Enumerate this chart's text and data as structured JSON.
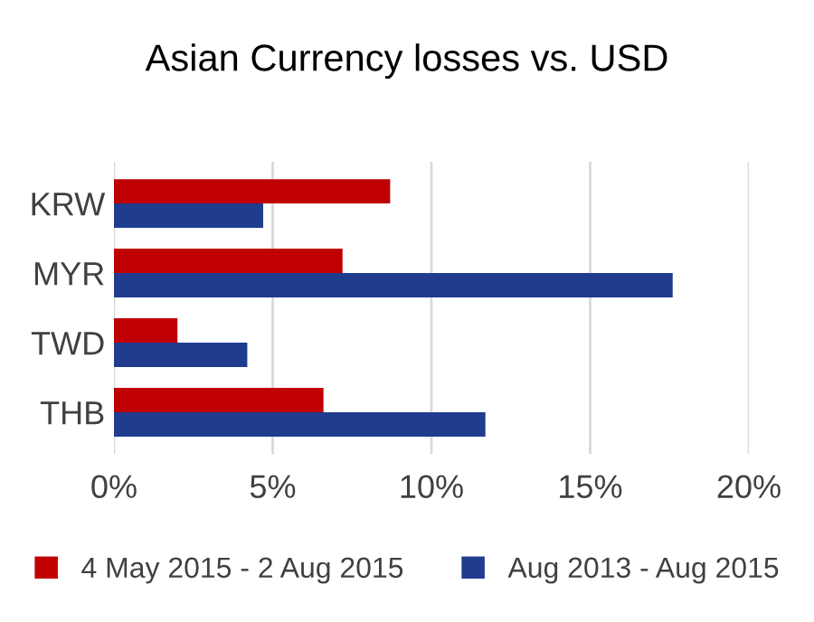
{
  "chart_data": {
    "type": "bar",
    "orientation": "horizontal",
    "title": "Asian Currency losses vs. USD",
    "categories": [
      "KRW",
      "MYR",
      "TWD",
      "THB"
    ],
    "series": [
      {
        "name": "4 May 2015 - 2 Aug 2015",
        "color": "#c00000",
        "values": [
          8.7,
          7.2,
          2.0,
          6.6
        ]
      },
      {
        "name": "Aug 2013 - Aug 2015",
        "color": "#1f3c8f",
        "values": [
          4.7,
          17.6,
          4.2,
          11.7
        ]
      }
    ],
    "xlim": [
      0,
      20
    ],
    "xticks": [
      {
        "value": 0,
        "label": "0%"
      },
      {
        "value": 5,
        "label": "5%"
      },
      {
        "value": 10,
        "label": "10%"
      },
      {
        "value": 15,
        "label": "15%"
      },
      {
        "value": 20,
        "label": "20%"
      }
    ],
    "grid": "x",
    "legend": "bottom"
  }
}
